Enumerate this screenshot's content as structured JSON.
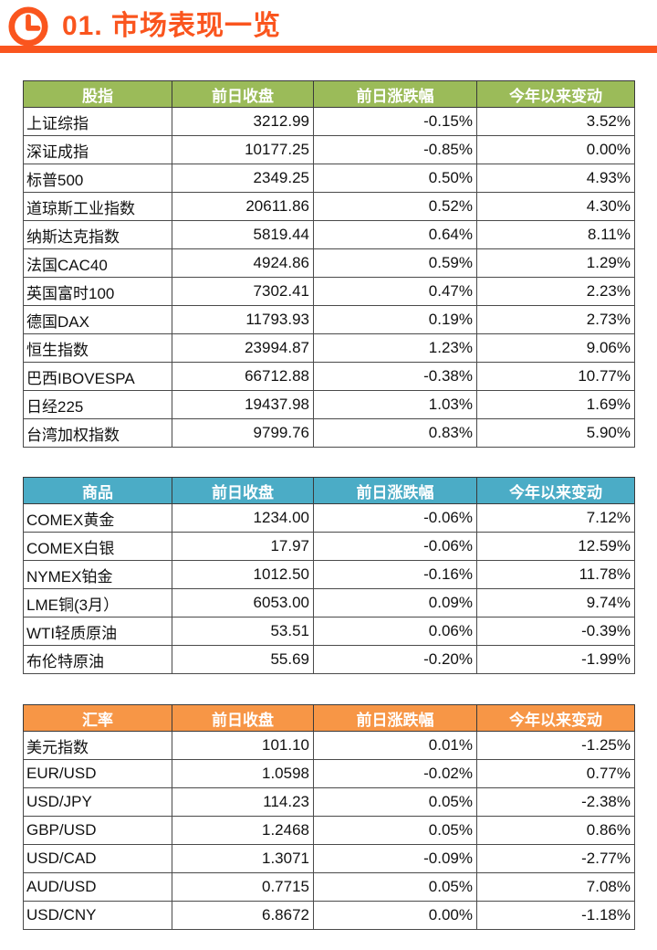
{
  "page": {
    "title": "01. 市场表现一览",
    "accent_color": "#FA551E"
  },
  "icons": {
    "clock": "clock-icon"
  },
  "tables": [
    {
      "name": "stock-indices",
      "header_color": "#9BBB59",
      "columns": [
        "股指",
        "前日收盘",
        "前日涨跌幅",
        "今年以来变动"
      ],
      "rows": [
        [
          "上证综指",
          "3212.99",
          "-0.15%",
          "3.52%"
        ],
        [
          "深证成指",
          "10177.25",
          "-0.85%",
          "0.00%"
        ],
        [
          "标普500",
          "2349.25",
          "0.50%",
          "4.93%"
        ],
        [
          "道琼斯工业指数",
          "20611.86",
          "0.52%",
          "4.30%"
        ],
        [
          "纳斯达克指数",
          "5819.44",
          "0.64%",
          "8.11%"
        ],
        [
          "法国CAC40",
          "4924.86",
          "0.59%",
          "1.29%"
        ],
        [
          "英国富时100",
          "7302.41",
          "0.47%",
          "2.23%"
        ],
        [
          "德国DAX",
          "11793.93",
          "0.19%",
          "2.73%"
        ],
        [
          "恒生指数",
          "23994.87",
          "1.23%",
          "9.06%"
        ],
        [
          "巴西IBOVESPA",
          "66712.88",
          "-0.38%",
          "10.77%"
        ],
        [
          "日经225",
          "19437.98",
          "1.03%",
          "1.69%"
        ],
        [
          "台湾加权指数",
          "9799.76",
          "0.83%",
          "5.90%"
        ]
      ]
    },
    {
      "name": "commodities",
      "header_color": "#4BACC6",
      "columns": [
        "商品",
        "前日收盘",
        "前日涨跌幅",
        "今年以来变动"
      ],
      "rows": [
        [
          "COMEX黄金",
          "1234.00",
          "-0.06%",
          "7.12%"
        ],
        [
          "COMEX白银",
          "17.97",
          "-0.06%",
          "12.59%"
        ],
        [
          "NYMEX铂金",
          "1012.50",
          "-0.16%",
          "11.78%"
        ],
        [
          "LME铜(3月）",
          "6053.00",
          "0.09%",
          "9.74%"
        ],
        [
          "WTI轻质原油",
          "53.51",
          "0.06%",
          "-0.39%"
        ],
        [
          "布伦特原油",
          "55.69",
          "-0.20%",
          "-1.99%"
        ]
      ]
    },
    {
      "name": "exchange-rates",
      "header_color": "#F79646",
      "columns": [
        "汇率",
        "前日收盘",
        "前日涨跌幅",
        "今年以来变动"
      ],
      "rows": [
        [
          "美元指数",
          "101.10",
          "0.01%",
          "-1.25%"
        ],
        [
          "EUR/USD",
          "1.0598",
          "-0.02%",
          "0.77%"
        ],
        [
          "USD/JPY",
          "114.23",
          "0.05%",
          "-2.38%"
        ],
        [
          "GBP/USD",
          "1.2468",
          "0.05%",
          "0.86%"
        ],
        [
          "USD/CAD",
          "1.3071",
          "-0.09%",
          "-2.77%"
        ],
        [
          "AUD/USD",
          "0.7715",
          "0.05%",
          "7.08%"
        ],
        [
          "USD/CNY",
          "6.8672",
          "0.00%",
          "-1.18%"
        ]
      ]
    }
  ]
}
